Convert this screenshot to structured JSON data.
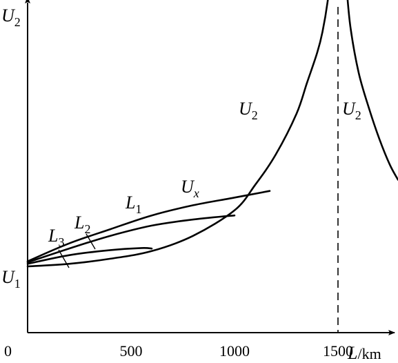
{
  "chart_data": {
    "type": "line",
    "title": "",
    "xlim": [
      0,
      1800
    ],
    "ylim": [
      0,
      6.5
    ],
    "x_ticks": [
      "0",
      "500",
      "1000",
      "1500"
    ],
    "x_tick_values": [
      0,
      500,
      1000,
      1500
    ],
    "xlabel": {
      "symbol": "L",
      "unit": "km"
    },
    "ylabel": {
      "symbol": "U",
      "sub": "2"
    },
    "origin_label": {
      "symbol": "U",
      "sub": "1"
    },
    "asymptote_x": 1500,
    "grid": false,
    "series": [
      {
        "id": "u2-left",
        "label": {
          "symbol": "U",
          "sub": "2"
        },
        "x": [
          0,
          200,
          400,
          600,
          800,
          1000,
          1100,
          1200,
          1300,
          1350,
          1400,
          1425,
          1450,
          1458
        ],
        "y": [
          1.3,
          1.35,
          1.45,
          1.6,
          1.9,
          2.4,
          2.9,
          3.5,
          4.3,
          4.9,
          5.5,
          5.9,
          6.5,
          6.85
        ]
      },
      {
        "id": "u2-right",
        "label": {
          "symbol": "U",
          "sub": "2"
        },
        "x": [
          1540,
          1560,
          1600,
          1650,
          1700,
          1750,
          1790
        ],
        "y": [
          6.85,
          6.0,
          5.1,
          4.4,
          3.8,
          3.3,
          3.0
        ]
      },
      {
        "id": "ux-l1",
        "label": {
          "symbol": "U",
          "sub": "x"
        },
        "tag": {
          "symbol": "L",
          "sub": "1"
        },
        "x": [
          0,
          200,
          400,
          600,
          800,
          1000,
          1170
        ],
        "y": [
          1.4,
          1.75,
          2.03,
          2.3,
          2.5,
          2.65,
          2.78
        ]
      },
      {
        "id": "l2",
        "tag": {
          "symbol": "L",
          "sub": "2"
        },
        "x": [
          0,
          200,
          400,
          600,
          800,
          1000
        ],
        "y": [
          1.38,
          1.65,
          1.9,
          2.1,
          2.22,
          2.3
        ]
      },
      {
        "id": "l3",
        "tag": {
          "symbol": "L",
          "sub": "3"
        },
        "x": [
          0,
          200,
          400,
          550,
          600
        ],
        "y": [
          1.35,
          1.52,
          1.62,
          1.66,
          1.65
        ]
      }
    ]
  }
}
